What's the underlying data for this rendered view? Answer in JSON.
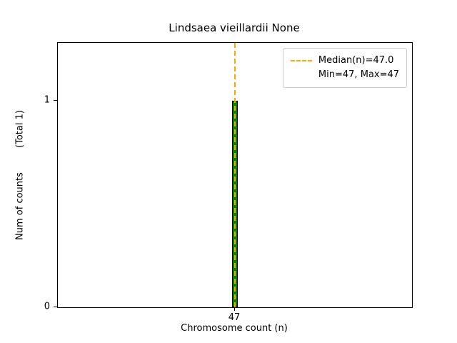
{
  "chart_data": {
    "type": "bar",
    "title": "Lindsaea vieillardii None",
    "xlabel": "Chromosome count (n)",
    "ylabel": "Num of counts",
    "ylabel_total": "(Total 1)",
    "categories": [
      47
    ],
    "values": [
      1
    ],
    "xticks": [
      "47"
    ],
    "yticks": [
      0,
      1
    ],
    "ylim": [
      0,
      1.28
    ],
    "bar_color": "#008000",
    "bar_edge_color": "#000000",
    "median_line_color": "#ffa500",
    "median": 47.0,
    "min": 47,
    "max": 47,
    "legend": {
      "position": "top-right",
      "entries": [
        "Median(n)=47.0",
        "Min=47, Max=47"
      ]
    },
    "grid": false
  }
}
